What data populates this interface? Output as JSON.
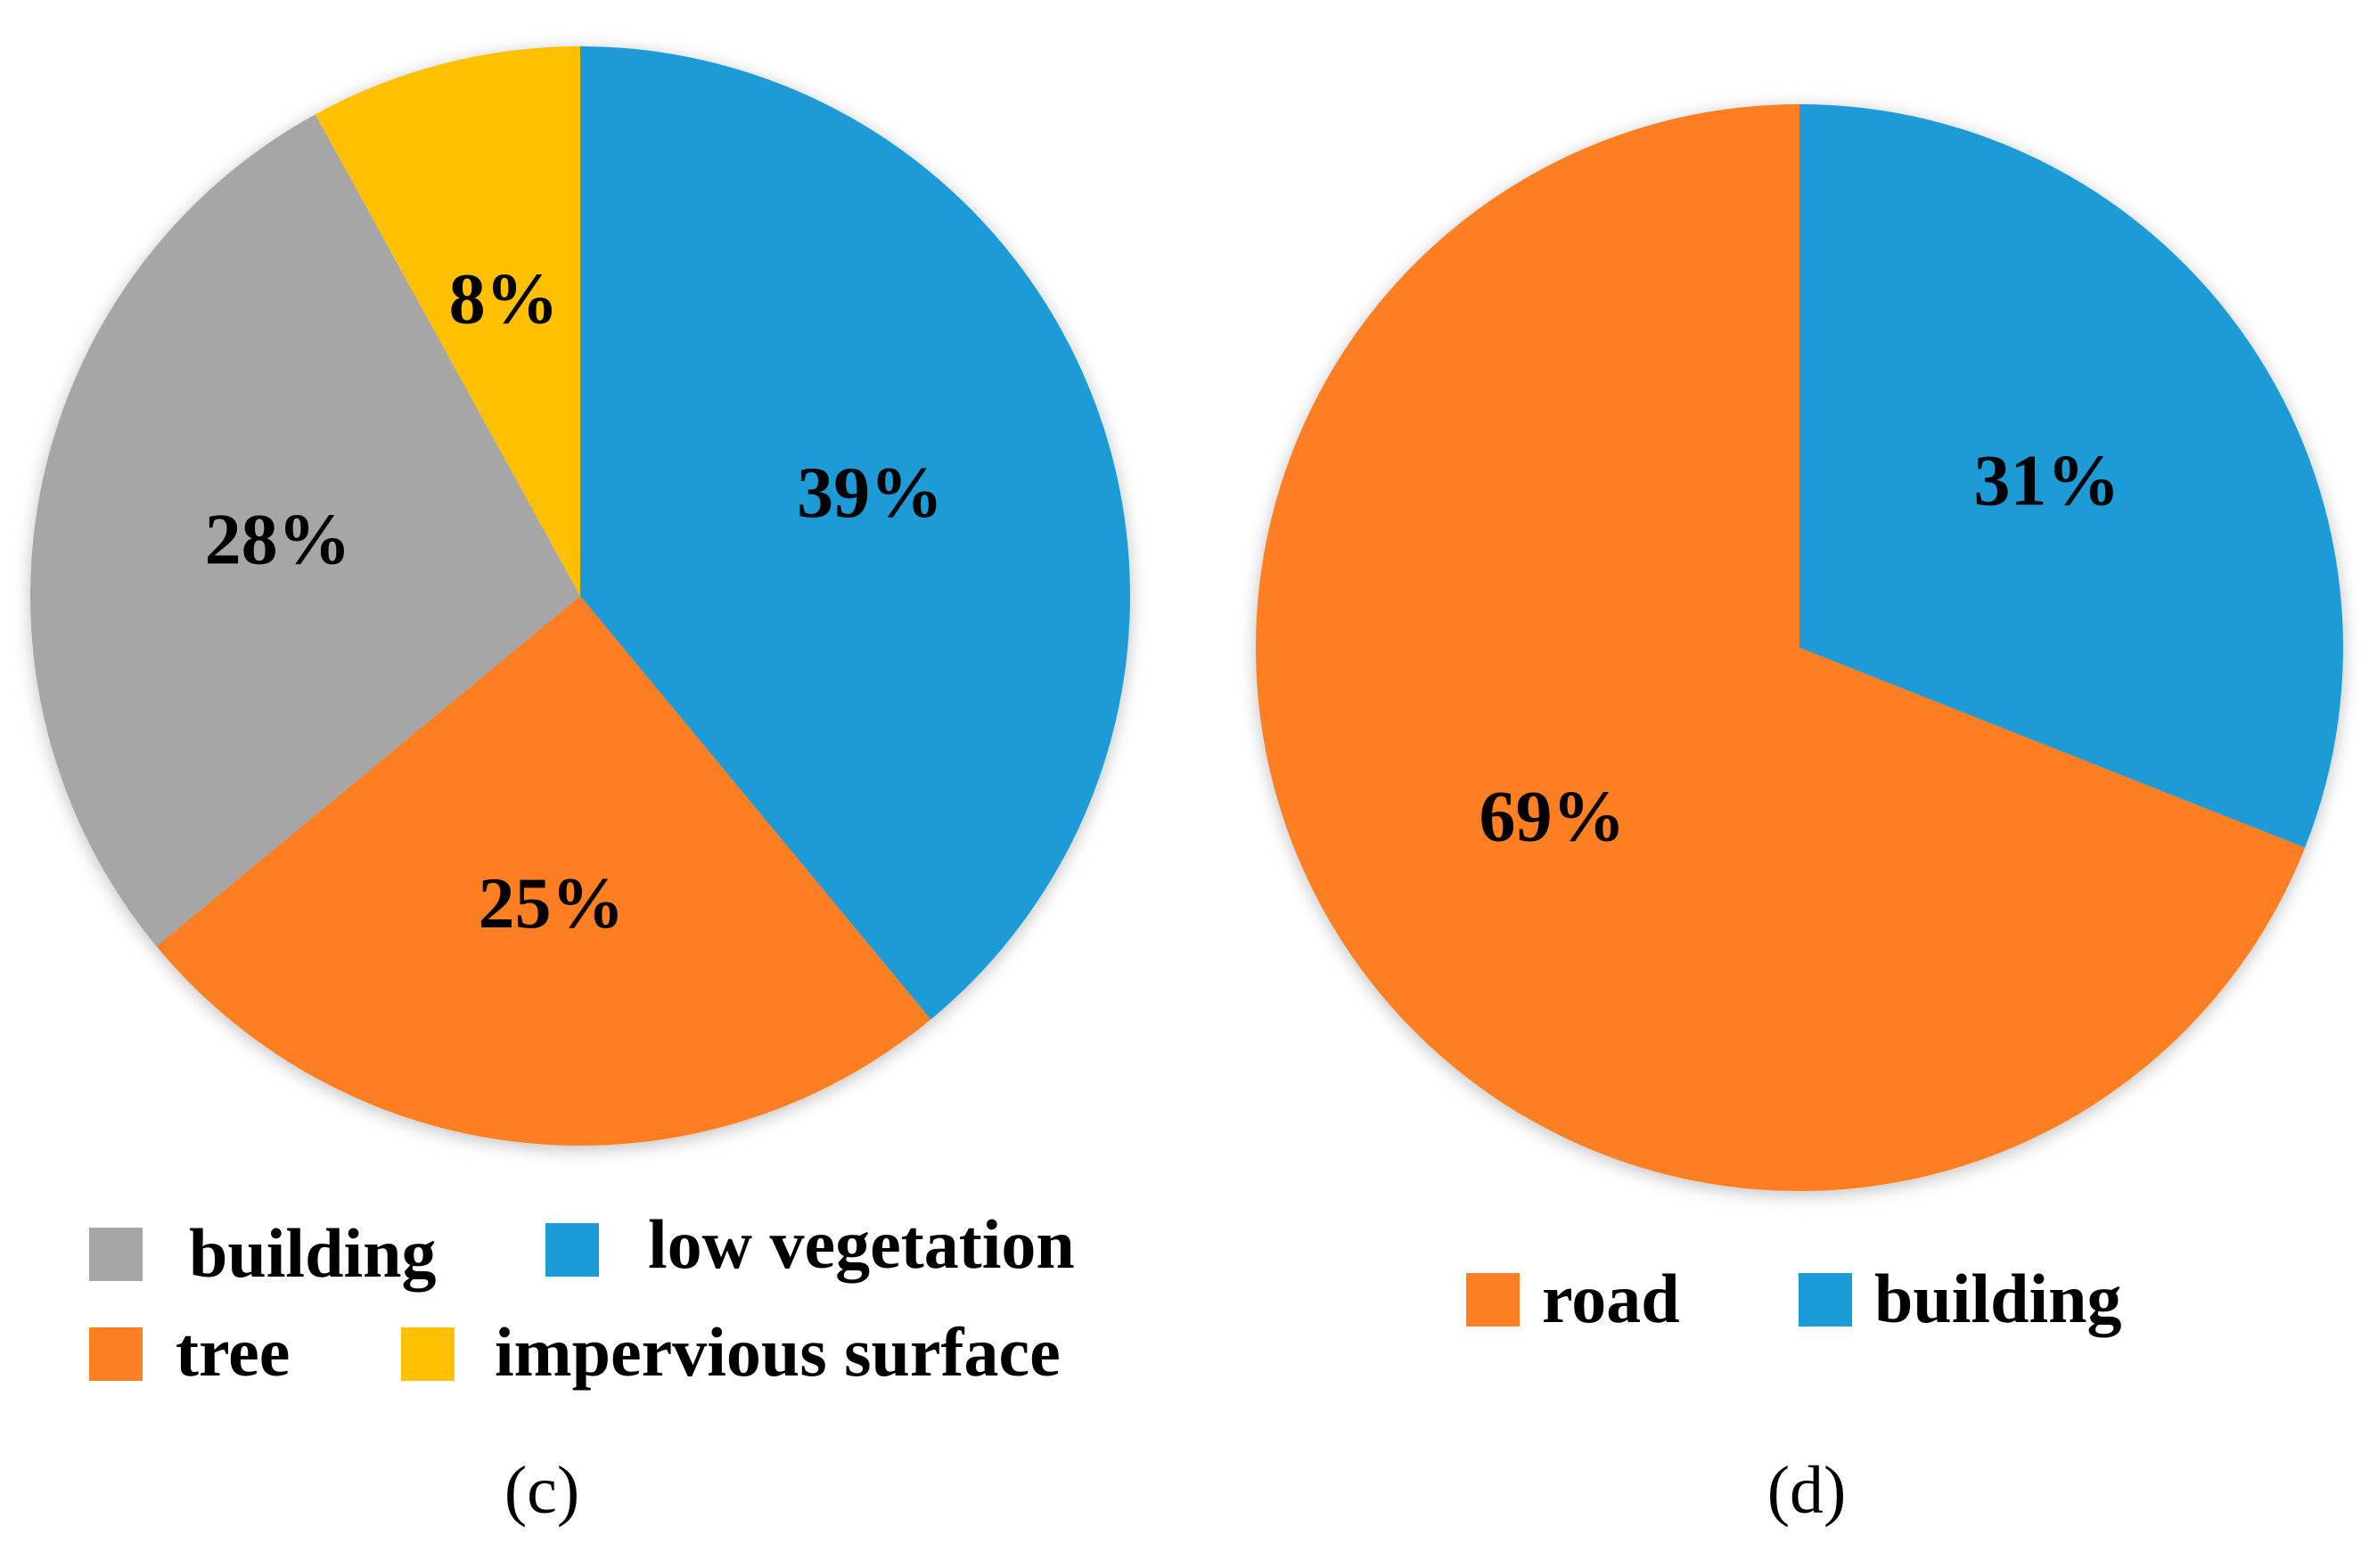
{
  "chart_data": [
    {
      "type": "pie",
      "caption": "(c)",
      "slices": [
        {
          "name": "low vegetation",
          "value": 39,
          "label": "39%",
          "color": "#1B9BD7"
        },
        {
          "name": "tree",
          "value": 25,
          "label": "25%",
          "color": "#FD7F23"
        },
        {
          "name": "building",
          "value": 28,
          "label": "28%",
          "color": "#A6A6A6"
        },
        {
          "name": "impervious surface",
          "value": 8,
          "label": "8%",
          "color": "#FFC000"
        }
      ],
      "legend": [
        {
          "label": "building",
          "color": "#A6A6A6"
        },
        {
          "label": "low vegetation",
          "color": "#1B9BD7"
        },
        {
          "label": "tree",
          "color": "#FD7F23"
        },
        {
          "label": "impervious surface",
          "color": "#FFC000"
        }
      ]
    },
    {
      "type": "pie",
      "caption": "(d)",
      "slices": [
        {
          "name": "building",
          "value": 31,
          "label": "31%",
          "color": "#1B9BD7"
        },
        {
          "name": "road",
          "value": 69,
          "label": "69%",
          "color": "#FD7F23"
        }
      ],
      "legend": [
        {
          "label": "road",
          "color": "#FD7F23"
        },
        {
          "label": "building",
          "color": "#1B9BD7"
        }
      ]
    }
  ]
}
